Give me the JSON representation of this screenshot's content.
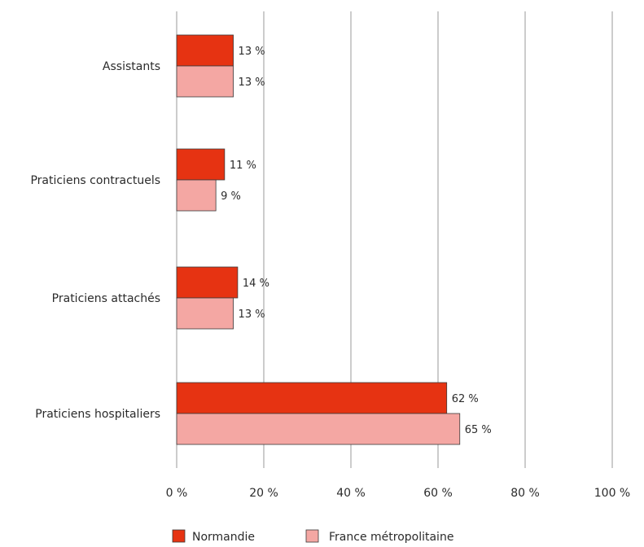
{
  "chart_data": {
    "type": "bar",
    "orientation": "horizontal",
    "categories": [
      "Assistants",
      "Praticiens contractuels",
      "Praticiens attachés",
      "Praticiens hospitaliers"
    ],
    "series": [
      {
        "name": "Normandie",
        "color": "#e63312",
        "values": [
          13,
          11,
          14,
          62
        ],
        "labels": [
          "13 %",
          "11 %",
          "14 %",
          "62 %"
        ]
      },
      {
        "name": "France métropolitaine",
        "color": "#f4a7a3",
        "values": [
          13,
          9,
          13,
          65
        ],
        "labels": [
          "13 %",
          "9 %",
          "13 %",
          "65 %"
        ]
      }
    ],
    "xlim": [
      0,
      100
    ],
    "ticks": [
      0,
      20,
      40,
      60,
      80,
      100
    ],
    "tick_labels": [
      "0 %",
      "20 %",
      "40 %",
      "60 %",
      "80 %",
      "100 %"
    ],
    "grid": true,
    "legend_position": "bottom"
  }
}
